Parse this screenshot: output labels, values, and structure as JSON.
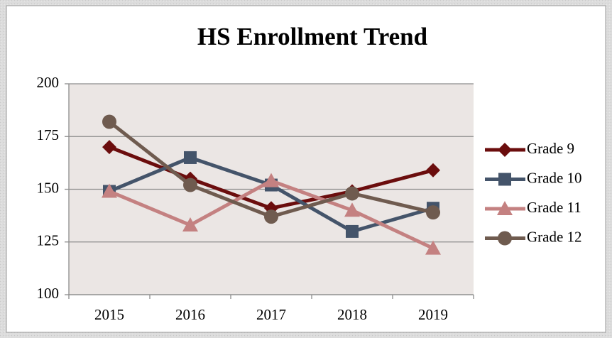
{
  "chart_data": {
    "type": "line",
    "title": "HS Enrollment Trend",
    "categories": [
      "2015",
      "2016",
      "2017",
      "2018",
      "2019"
    ],
    "series": [
      {
        "name": "Grade 9",
        "color": "#6b0d0d",
        "marker": "diamond",
        "values": [
          170,
          155,
          141,
          149,
          159
        ]
      },
      {
        "name": "Grade 10",
        "color": "#44546a",
        "marker": "square",
        "values": [
          149,
          165,
          152,
          130,
          141
        ]
      },
      {
        "name": "Grade 11",
        "color": "#c48181",
        "marker": "triangle",
        "values": [
          149,
          133,
          154,
          140,
          122
        ]
      },
      {
        "name": "Grade 12",
        "color": "#6f5b4f",
        "marker": "circle",
        "values": [
          182,
          152,
          137,
          148,
          139
        ]
      }
    ],
    "ylim": [
      100,
      200
    ],
    "yticks": [
      100,
      125,
      150,
      175,
      200
    ],
    "grid": true,
    "legend": "right"
  }
}
